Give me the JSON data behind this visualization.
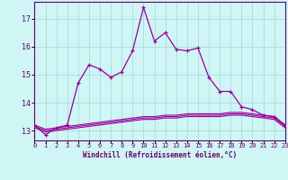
{
  "xlabel": "Windchill (Refroidissement éolien,°C)",
  "background_color": "#cff5f5",
  "grid_color": "#aadddd",
  "line_color": "#990099",
  "x_ticks": [
    0,
    1,
    2,
    3,
    4,
    5,
    6,
    7,
    8,
    9,
    10,
    11,
    12,
    13,
    14,
    15,
    16,
    17,
    18,
    19,
    20,
    21,
    22,
    23
  ],
  "y_ticks": [
    13,
    14,
    15,
    16,
    17
  ],
  "xlim": [
    0,
    23
  ],
  "ylim": [
    12.65,
    17.6
  ],
  "series_main": [
    13.2,
    12.85,
    13.1,
    13.2,
    14.7,
    15.35,
    15.2,
    14.9,
    15.1,
    15.85,
    17.4,
    16.2,
    16.5,
    15.9,
    15.85,
    15.95,
    14.9,
    14.4,
    14.4,
    13.85,
    13.75,
    13.55,
    13.5,
    13.2
  ],
  "series_flat1": [
    13.2,
    13.05,
    13.1,
    13.15,
    13.2,
    13.25,
    13.3,
    13.35,
    13.4,
    13.45,
    13.5,
    13.5,
    13.55,
    13.55,
    13.6,
    13.6,
    13.6,
    13.6,
    13.65,
    13.65,
    13.6,
    13.55,
    13.5,
    13.2
  ],
  "series_flat2": [
    13.15,
    13.0,
    13.05,
    13.1,
    13.15,
    13.2,
    13.25,
    13.3,
    13.35,
    13.4,
    13.45,
    13.45,
    13.5,
    13.5,
    13.55,
    13.55,
    13.55,
    13.55,
    13.6,
    13.6,
    13.55,
    13.5,
    13.45,
    13.15
  ],
  "series_flat3": [
    13.1,
    12.95,
    13.0,
    13.05,
    13.1,
    13.15,
    13.2,
    13.25,
    13.3,
    13.35,
    13.4,
    13.4,
    13.45,
    13.45,
    13.5,
    13.5,
    13.5,
    13.5,
    13.55,
    13.55,
    13.5,
    13.45,
    13.4,
    13.1
  ]
}
